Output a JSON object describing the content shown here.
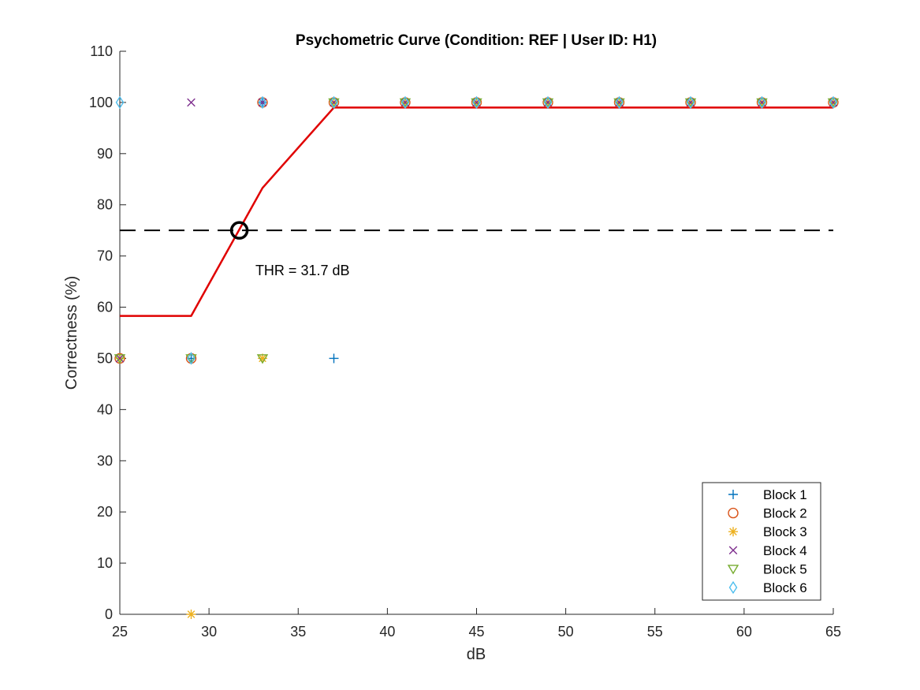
{
  "chart_data": {
    "type": "scatter",
    "title": "Psychometric Curve (Condition: REF | User ID: H1)",
    "xlabel": "dB",
    "ylabel": "Correctness (%)",
    "xlim": [
      25,
      65
    ],
    "ylim": [
      0,
      110
    ],
    "xticks": [
      25,
      30,
      35,
      40,
      45,
      50,
      55,
      60,
      65
    ],
    "yticks": [
      0,
      10,
      20,
      30,
      40,
      50,
      60,
      70,
      80,
      90,
      100,
      110
    ],
    "grid": false,
    "legend_position": "bottom-right",
    "series": [
      {
        "name": "Block 1",
        "marker": "plus",
        "color": "#0072BD",
        "x": [
          25,
          29,
          33,
          37,
          41,
          45,
          49,
          53,
          57,
          61,
          65
        ],
        "y": [
          50,
          50,
          100,
          50,
          100,
          100,
          100,
          100,
          100,
          100,
          100
        ]
      },
      {
        "name": "Block 2",
        "marker": "circle",
        "color": "#D95319",
        "x": [
          25,
          29,
          33,
          37,
          41,
          45,
          49,
          53,
          57,
          61,
          65
        ],
        "y": [
          50,
          50,
          100,
          100,
          100,
          100,
          100,
          100,
          100,
          100,
          100
        ]
      },
      {
        "name": "Block 3",
        "marker": "asterisk",
        "color": "#EDB120",
        "x": [
          25,
          29,
          33,
          37,
          41,
          45,
          49,
          53,
          57,
          61,
          65
        ],
        "y": [
          50,
          0,
          50,
          100,
          100,
          100,
          100,
          100,
          100,
          100,
          100
        ]
      },
      {
        "name": "Block 4",
        "marker": "cross",
        "color": "#7E2F8E",
        "x": [
          25,
          29,
          33,
          37,
          41,
          45,
          49,
          53,
          57,
          61,
          65
        ],
        "y": [
          50,
          100,
          100,
          100,
          100,
          100,
          100,
          100,
          100,
          100,
          100
        ]
      },
      {
        "name": "Block 5",
        "marker": "triangle-down",
        "color": "#77AC30",
        "x": [
          25,
          29,
          33,
          37,
          41,
          45,
          49,
          53,
          57,
          61,
          65
        ],
        "y": [
          50,
          50,
          50,
          100,
          100,
          100,
          100,
          100,
          100,
          100,
          100
        ]
      },
      {
        "name": "Block 6",
        "marker": "diamond",
        "color": "#4DBEEE",
        "x": [
          25,
          29,
          33,
          37,
          41,
          45,
          49,
          53,
          57,
          61,
          65
        ],
        "y": [
          100,
          50,
          100,
          100,
          100,
          100,
          100,
          100,
          100,
          100,
          100
        ]
      }
    ],
    "fit_curve": {
      "color": "#E00000",
      "x": [
        25,
        29,
        33,
        37,
        41,
        45,
        49,
        53,
        57,
        61,
        65
      ],
      "y": [
        58.3,
        58.3,
        83.3,
        99,
        99,
        99,
        99,
        99,
        99,
        99,
        99
      ]
    },
    "threshold_line": {
      "y": 75,
      "color": "#000000"
    },
    "threshold_point": {
      "x": 31.7,
      "y": 75
    },
    "annotation": {
      "text": "THR = 31.7 dB",
      "x": 32.6,
      "y": 67.5
    }
  }
}
